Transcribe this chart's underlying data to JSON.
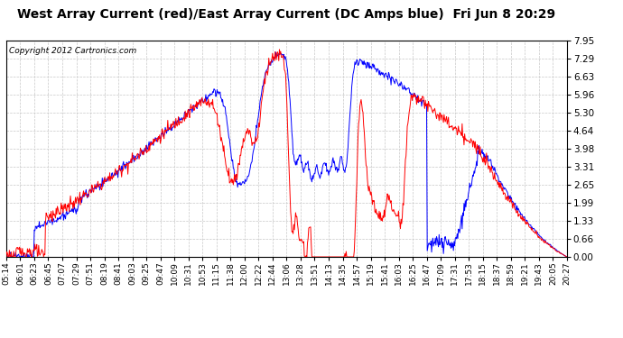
{
  "title": "West Array Current (red)/East Array Current (DC Amps blue)  Fri Jun 8 20:29",
  "copyright": "Copyright 2012 Cartronics.com",
  "ymin": 0.0,
  "ymax": 7.95,
  "yticks": [
    0.0,
    0.66,
    1.33,
    1.99,
    2.65,
    3.31,
    3.98,
    4.64,
    5.3,
    5.96,
    6.63,
    7.29,
    7.95
  ],
  "xtick_labels": [
    "05:14",
    "06:01",
    "06:23",
    "06:45",
    "07:07",
    "07:29",
    "07:51",
    "08:19",
    "08:41",
    "09:03",
    "09:25",
    "09:47",
    "10:09",
    "10:31",
    "10:53",
    "11:15",
    "11:38",
    "12:00",
    "12:22",
    "12:44",
    "13:06",
    "13:28",
    "13:51",
    "14:13",
    "14:35",
    "14:57",
    "15:19",
    "15:41",
    "16:03",
    "16:25",
    "16:47",
    "17:09",
    "17:31",
    "17:53",
    "18:15",
    "18:37",
    "18:59",
    "19:21",
    "19:43",
    "20:05",
    "20:27"
  ],
  "red_color": "#ff0000",
  "blue_color": "#0000ff",
  "bg_color": "#ffffff",
  "grid_color": "#c8c8c8",
  "title_color": "#000000",
  "copyright_color": "#000000",
  "linewidth": 0.7,
  "title_fontsize": 10,
  "copyright_fontsize": 6.5,
  "tick_fontsize": 6.5,
  "ytick_fontsize": 7.5
}
